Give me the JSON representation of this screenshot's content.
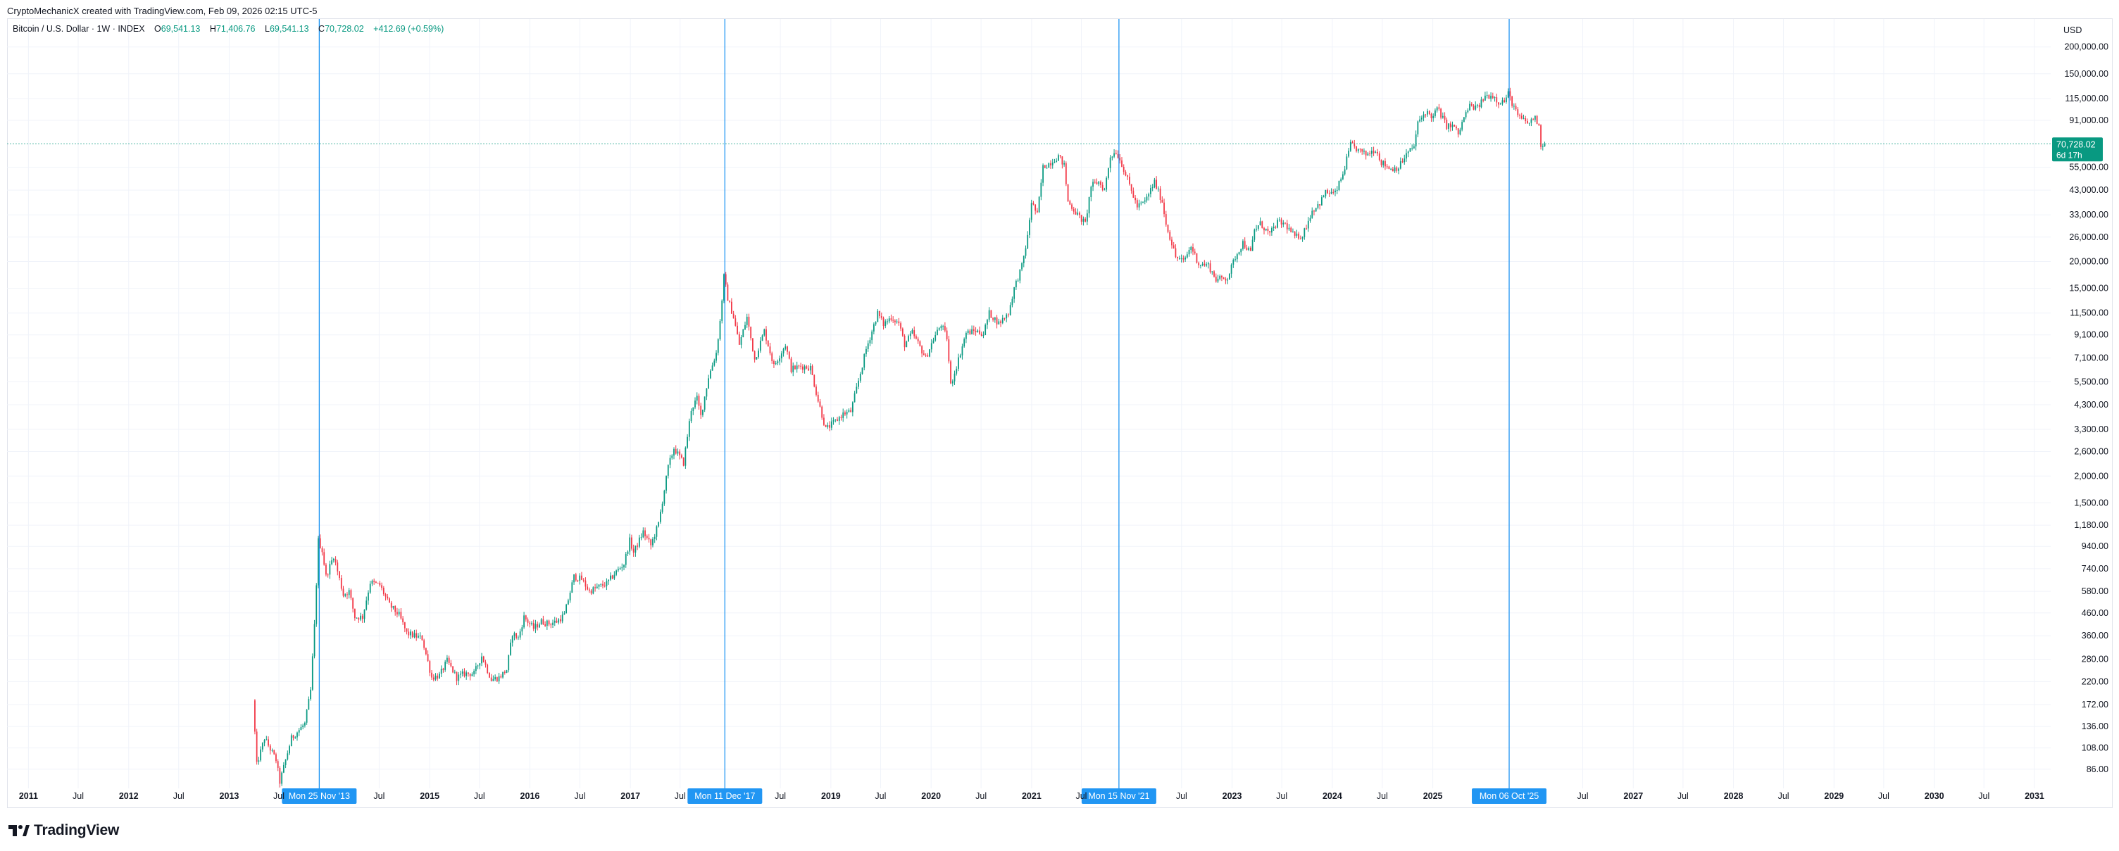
{
  "header": {
    "caption": "CryptoMechanicX created with TradingView.com, Feb 09, 2026 02:15 UTC-5"
  },
  "legend": {
    "symbol": "Bitcoin / U.S. Dollar · 1W · INDEX",
    "o_label": "O",
    "o_value": "69,541.13",
    "h_label": "H",
    "h_value": "71,406.76",
    "l_label": "L",
    "l_value": "69,541.13",
    "c_label": "C",
    "c_value": "70,728.02",
    "change": "+412.69 (+0.59%)"
  },
  "currency": "USD",
  "footer": {
    "brand": "TradingView"
  },
  "colors": {
    "up": "#089981",
    "down": "#f23645",
    "marker_line": "#2196f3",
    "marker_bg": "#2196f3",
    "price_tag_bg": "#089981",
    "grid": "#f0f3fa",
    "price_line": "#089981"
  },
  "chart_data": {
    "type": "candlestick",
    "scale": "log",
    "title": "Bitcoin / U.S. Dollar · 1W · INDEX",
    "ylim": [
      70,
      270000
    ],
    "xlim": [
      "2010-10-15",
      "2031-03-01"
    ],
    "y_ticks": [
      "200,000.00",
      "150,000.00",
      "115,000.00",
      "91,000.00",
      "55,000.00",
      "43,000.00",
      "33,000.00",
      "26,000.00",
      "20,000.00",
      "15,000.00",
      "11,500.00",
      "9,100.00",
      "7,100.00",
      "5,500.00",
      "4,300.00",
      "3,300.00",
      "2,600.00",
      "2,000.00",
      "1,500.00",
      "1,180.00",
      "940.00",
      "740.00",
      "580.00",
      "460.00",
      "360.00",
      "280.00",
      "220.00",
      "172.00",
      "136.00",
      "108.00",
      "86.00"
    ],
    "x_ticks": [
      {
        "label": "2011",
        "date": "2011-01-01"
      },
      {
        "label": "Jul",
        "date": "2011-07-01"
      },
      {
        "label": "2012",
        "date": "2012-01-01"
      },
      {
        "label": "Jul",
        "date": "2012-07-01"
      },
      {
        "label": "2013",
        "date": "2013-01-01"
      },
      {
        "label": "Jul",
        "date": "2013-07-01"
      },
      {
        "label": "Jul",
        "date": "2014-07-01"
      },
      {
        "label": "2015",
        "date": "2015-01-01"
      },
      {
        "label": "Jul",
        "date": "2015-07-01"
      },
      {
        "label": "2016",
        "date": "2016-01-01"
      },
      {
        "label": "Jul",
        "date": "2016-07-01"
      },
      {
        "label": "2017",
        "date": "2017-01-01"
      },
      {
        "label": "Jul",
        "date": "2017-07-01"
      },
      {
        "label": "Jul",
        "date": "2018-07-01"
      },
      {
        "label": "2019",
        "date": "2019-01-01"
      },
      {
        "label": "Jul",
        "date": "2019-07-01"
      },
      {
        "label": "2020",
        "date": "2020-01-01"
      },
      {
        "label": "Jul",
        "date": "2020-07-01"
      },
      {
        "label": "2021",
        "date": "2021-01-01"
      },
      {
        "label": "Jul",
        "date": "2021-07-01"
      },
      {
        "label": "Jul",
        "date": "2022-07-01"
      },
      {
        "label": "2023",
        "date": "2023-01-01"
      },
      {
        "label": "Jul",
        "date": "2023-07-01"
      },
      {
        "label": "2024",
        "date": "2024-01-01"
      },
      {
        "label": "Jul",
        "date": "2024-07-01"
      },
      {
        "label": "2025",
        "date": "2025-01-01"
      },
      {
        "label": "Jul",
        "date": "2026-07-01"
      },
      {
        "label": "2027",
        "date": "2027-01-01"
      },
      {
        "label": "Jul",
        "date": "2027-07-01"
      },
      {
        "label": "2028",
        "date": "2028-01-01"
      },
      {
        "label": "Jul",
        "date": "2028-07-01"
      },
      {
        "label": "2029",
        "date": "2029-01-01"
      },
      {
        "label": "Jul",
        "date": "2029-07-01"
      },
      {
        "label": "2030",
        "date": "2030-01-01"
      },
      {
        "label": "Jul",
        "date": "2030-07-01"
      },
      {
        "label": "2031",
        "date": "2031-01-01"
      }
    ],
    "markers": [
      {
        "label": "Mon 25 Nov '13",
        "date": "2013-11-25"
      },
      {
        "label": "Mon 11 Dec '17",
        "date": "2017-12-11"
      },
      {
        "label": "Mon 15 Nov '21",
        "date": "2021-11-15"
      },
      {
        "label": "Mon 06 Oct '25",
        "date": "2025-10-06"
      }
    ],
    "last_price": {
      "value": 70728.02,
      "label": "70,728.02",
      "countdown": "6d 17h"
    },
    "price_path": [
      [
        "2013-04-01",
        180
      ],
      [
        "2013-04-15",
        90
      ],
      [
        "2013-05-13",
        120
      ],
      [
        "2013-06-24",
        95
      ],
      [
        "2013-07-08",
        75
      ],
      [
        "2013-08-19",
        120
      ],
      [
        "2013-10-07",
        140
      ],
      [
        "2013-10-28",
        200
      ],
      [
        "2013-11-11",
        400
      ],
      [
        "2013-11-25",
        1000
      ],
      [
        "2013-12-09",
        900
      ],
      [
        "2013-12-23",
        680
      ],
      [
        "2014-01-20",
        850
      ],
      [
        "2014-02-24",
        560
      ],
      [
        "2014-03-17",
        580
      ],
      [
        "2014-04-07",
        440
      ],
      [
        "2014-05-05",
        440
      ],
      [
        "2014-06-02",
        640
      ],
      [
        "2014-07-07",
        620
      ],
      [
        "2014-08-11",
        500
      ],
      [
        "2014-09-15",
        450
      ],
      [
        "2014-10-13",
        370
      ],
      [
        "2014-11-10",
        360
      ],
      [
        "2014-12-08",
        350
      ],
      [
        "2015-01-12",
        230
      ],
      [
        "2015-02-09",
        235
      ],
      [
        "2015-03-09",
        275
      ],
      [
        "2015-04-13",
        230
      ],
      [
        "2015-05-11",
        240
      ],
      [
        "2015-06-15",
        240
      ],
      [
        "2015-07-13",
        290
      ],
      [
        "2015-08-17",
        225
      ],
      [
        "2015-09-14",
        230
      ],
      [
        "2015-10-12",
        250
      ],
      [
        "2015-11-02",
        370
      ],
      [
        "2015-11-23",
        350
      ],
      [
        "2015-12-14",
        440
      ],
      [
        "2016-01-18",
        390
      ],
      [
        "2016-02-15",
        420
      ],
      [
        "2016-03-14",
        410
      ],
      [
        "2016-04-11",
        420
      ],
      [
        "2016-05-09",
        450
      ],
      [
        "2016-06-13",
        680
      ],
      [
        "2016-07-11",
        660
      ],
      [
        "2016-08-08",
        580
      ],
      [
        "2016-09-12",
        610
      ],
      [
        "2016-10-10",
        630
      ],
      [
        "2016-11-07",
        700
      ],
      [
        "2016-12-12",
        780
      ],
      [
        "2017-01-02",
        1000
      ],
      [
        "2017-01-16",
        880
      ],
      [
        "2017-02-20",
        1100
      ],
      [
        "2017-03-20",
        950
      ],
      [
        "2017-04-17",
        1200
      ],
      [
        "2017-05-22",
        2200
      ],
      [
        "2017-06-12",
        2700
      ],
      [
        "2017-07-17",
        2300
      ],
      [
        "2017-08-14",
        4100
      ],
      [
        "2017-09-04",
        4600
      ],
      [
        "2017-09-18",
        3800
      ],
      [
        "2017-10-16",
        5800
      ],
      [
        "2017-11-13",
        7500
      ],
      [
        "2017-11-27",
        10500
      ],
      [
        "2017-12-11",
        17000
      ],
      [
        "2017-12-25",
        13500
      ],
      [
        "2018-01-15",
        11000
      ],
      [
        "2018-02-05",
        8200
      ],
      [
        "2018-03-05",
        11000
      ],
      [
        "2018-04-02",
        7000
      ],
      [
        "2018-05-07",
        9500
      ],
      [
        "2018-06-11",
        6500
      ],
      [
        "2018-07-23",
        8200
      ],
      [
        "2018-08-13",
        6300
      ],
      [
        "2018-09-17",
        6500
      ],
      [
        "2018-10-22",
        6400
      ],
      [
        "2018-11-19",
        4500
      ],
      [
        "2018-12-17",
        3300
      ],
      [
        "2019-01-21",
        3600
      ],
      [
        "2019-02-18",
        3900
      ],
      [
        "2019-03-18",
        4000
      ],
      [
        "2019-04-08",
        5100
      ],
      [
        "2019-05-13",
        7800
      ],
      [
        "2019-06-24",
        11500
      ],
      [
        "2019-07-15",
        10200
      ],
      [
        "2019-08-12",
        11000
      ],
      [
        "2019-09-09",
        10300
      ],
      [
        "2019-09-30",
        8200
      ],
      [
        "2019-10-28",
        9300
      ],
      [
        "2019-12-16",
        7100
      ],
      [
        "2020-01-13",
        8700
      ],
      [
        "2020-02-10",
        10200
      ],
      [
        "2020-03-02",
        8800
      ],
      [
        "2020-03-16",
        5300
      ],
      [
        "2020-04-13",
        7000
      ],
      [
        "2020-05-11",
        9300
      ],
      [
        "2020-06-15",
        9500
      ],
      [
        "2020-07-13",
        9200
      ],
      [
        "2020-08-03",
        11500
      ],
      [
        "2020-09-07",
        10300
      ],
      [
        "2020-10-12",
        11500
      ],
      [
        "2020-11-02",
        15000
      ],
      [
        "2020-11-30",
        19000
      ],
      [
        "2020-12-21",
        26000
      ],
      [
        "2021-01-04",
        38000
      ],
      [
        "2021-01-25",
        33000
      ],
      [
        "2021-02-15",
        55000
      ],
      [
        "2021-03-15",
        58000
      ],
      [
        "2021-04-12",
        62000
      ],
      [
        "2021-05-03",
        56000
      ],
      [
        "2021-05-17",
        38000
      ],
      [
        "2021-06-21",
        33000
      ],
      [
        "2021-07-19",
        30000
      ],
      [
        "2021-08-09",
        45000
      ],
      [
        "2021-09-06",
        47000
      ],
      [
        "2021-09-27",
        43000
      ],
      [
        "2021-10-18",
        62000
      ],
      [
        "2021-11-08",
        65000
      ],
      [
        "2021-11-29",
        57000
      ],
      [
        "2021-12-20",
        48000
      ],
      [
        "2022-01-24",
        36000
      ],
      [
        "2022-02-21",
        38000
      ],
      [
        "2022-03-28",
        47000
      ],
      [
        "2022-04-25",
        38000
      ],
      [
        "2022-05-09",
        30000
      ],
      [
        "2022-06-13",
        21000
      ],
      [
        "2022-07-11",
        20000
      ],
      [
        "2022-08-08",
        23500
      ],
      [
        "2022-09-05",
        19500
      ],
      [
        "2022-10-10",
        19200
      ],
      [
        "2022-11-07",
        16500
      ],
      [
        "2022-12-19",
        16800
      ],
      [
        "2023-01-16",
        21000
      ],
      [
        "2023-02-13",
        24500
      ],
      [
        "2023-03-13",
        22000
      ],
      [
        "2023-03-27",
        28000
      ],
      [
        "2023-04-17",
        30000
      ],
      [
        "2023-05-22",
        26800
      ],
      [
        "2023-06-19",
        30500
      ],
      [
        "2023-07-17",
        29800
      ],
      [
        "2023-08-21",
        26000
      ],
      [
        "2023-09-18",
        26500
      ],
      [
        "2023-10-23",
        34500
      ],
      [
        "2023-11-20",
        37500
      ],
      [
        "2023-12-11",
        42000
      ],
      [
        "2024-01-15",
        41500
      ],
      [
        "2024-02-12",
        51000
      ],
      [
        "2024-03-11",
        70000
      ],
      [
        "2024-04-08",
        66000
      ],
      [
        "2024-05-06",
        63000
      ],
      [
        "2024-06-10",
        67000
      ],
      [
        "2024-07-01",
        58000
      ],
      [
        "2024-08-05",
        54000
      ],
      [
        "2024-09-02",
        55000
      ],
      [
        "2024-09-30",
        63000
      ],
      [
        "2024-10-28",
        69000
      ],
      [
        "2024-11-11",
        88000
      ],
      [
        "2024-12-09",
        100000
      ],
      [
        "2025-01-06",
        94000
      ],
      [
        "2025-01-20",
        104000
      ],
      [
        "2025-02-24",
        86000
      ],
      [
        "2025-03-24",
        85000
      ],
      [
        "2025-04-07",
        78000
      ],
      [
        "2025-04-28",
        94000
      ],
      [
        "2025-05-19",
        106000
      ],
      [
        "2025-06-16",
        104000
      ],
      [
        "2025-07-14",
        118000
      ],
      [
        "2025-08-11",
        119000
      ],
      [
        "2025-09-01",
        111000
      ],
      [
        "2025-09-22",
        112000
      ],
      [
        "2025-10-06",
        121000
      ],
      [
        "2025-10-20",
        110000
      ],
      [
        "2025-11-10",
        95000
      ],
      [
        "2025-12-01",
        91000
      ],
      [
        "2025-12-22",
        88000
      ],
      [
        "2026-01-12",
        95000
      ],
      [
        "2026-01-26",
        84000
      ],
      [
        "2026-02-02",
        70300
      ],
      [
        "2026-02-09",
        70728
      ]
    ]
  }
}
